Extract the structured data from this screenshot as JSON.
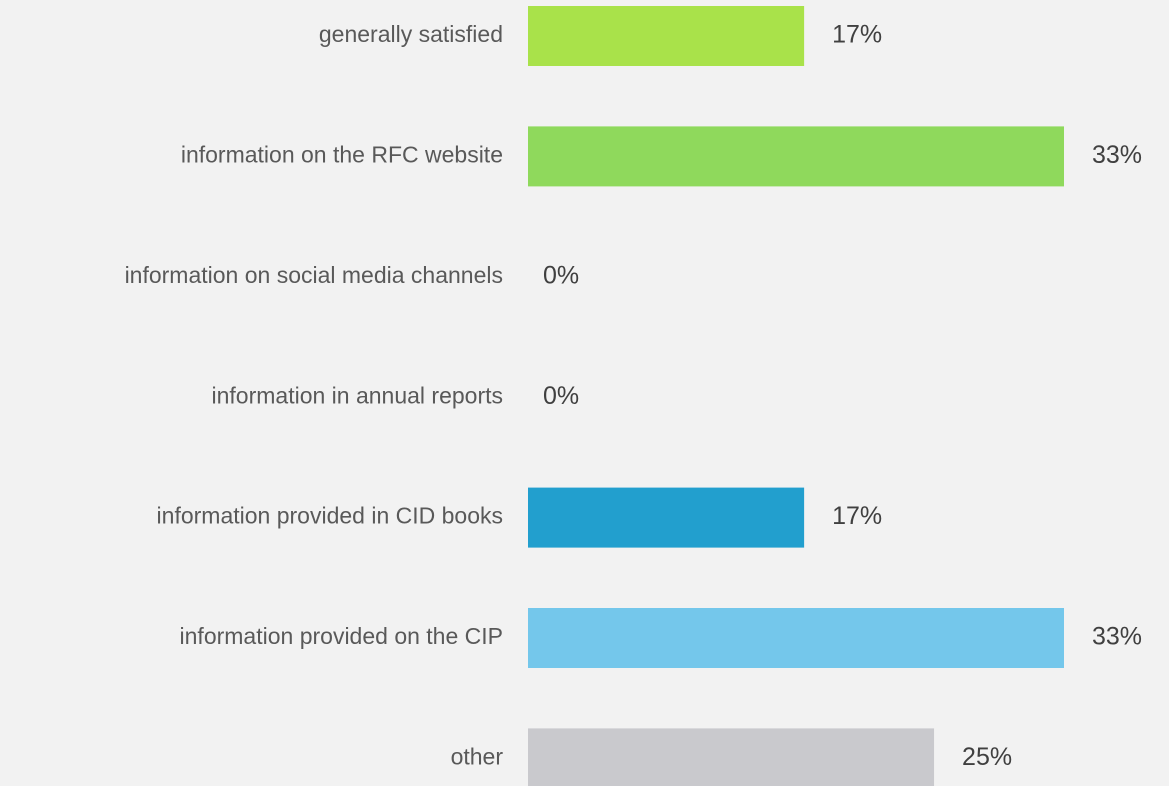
{
  "chart_data": {
    "type": "hbar",
    "categories": [
      "generally satisfied",
      "information on the RFC website",
      "information on social media channels",
      "information in annual reports",
      "information provided in CID books",
      "information provided on the CIP",
      "other"
    ],
    "values": [
      17,
      33,
      0,
      0,
      17,
      33,
      25
    ],
    "value_labels": [
      "17%",
      "33%",
      "0%",
      "0%",
      "17%",
      "33%",
      "25%"
    ],
    "colors": [
      "#a9e24a",
      "#8fd95c",
      "#8fd95c",
      "#229fce",
      "#229fce",
      "#74c7eb",
      "#c9c9cd"
    ]
  }
}
